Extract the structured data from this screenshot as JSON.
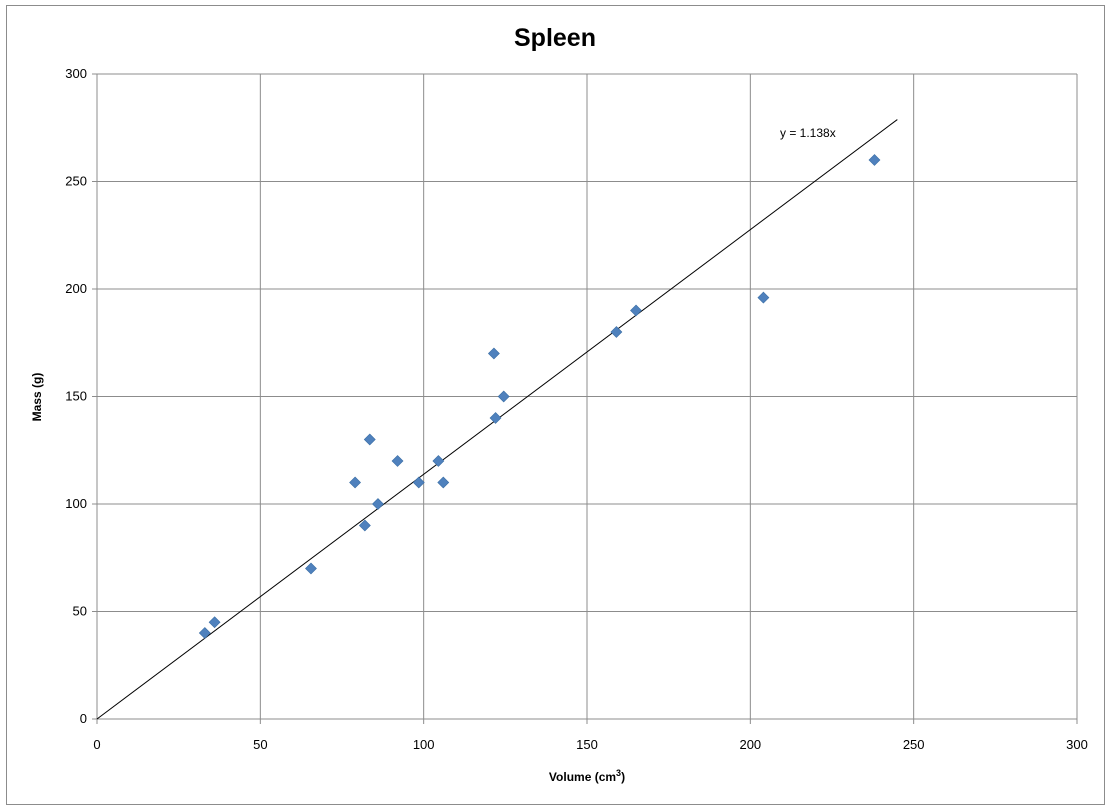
{
  "chart_data": {
    "type": "scatter",
    "title": "Spleen",
    "xlabel": "Volume (cm",
    "xlabel_sup": "3",
    "xlabel_end": ")",
    "ylabel": "Mass (g)",
    "xlim": [
      0,
      300
    ],
    "ylim": [
      0,
      300
    ],
    "x_ticks": [
      0,
      50,
      100,
      150,
      200,
      250,
      300
    ],
    "y_ticks": [
      0,
      50,
      100,
      150,
      200,
      250,
      300
    ],
    "grid": true,
    "legend": "none",
    "series": [
      {
        "color": "#4f81bd",
        "marker": "diamond",
        "points": [
          {
            "x": 33,
            "y": 40
          },
          {
            "x": 36,
            "y": 45
          },
          {
            "x": 65.5,
            "y": 70
          },
          {
            "x": 79,
            "y": 110
          },
          {
            "x": 82,
            "y": 90
          },
          {
            "x": 83.5,
            "y": 130
          },
          {
            "x": 86,
            "y": 100
          },
          {
            "x": 92,
            "y": 120
          },
          {
            "x": 98.5,
            "y": 110
          },
          {
            "x": 104.5,
            "y": 120
          },
          {
            "x": 106,
            "y": 110
          },
          {
            "x": 121.5,
            "y": 170
          },
          {
            "x": 122,
            "y": 140
          },
          {
            "x": 124.5,
            "y": 150
          },
          {
            "x": 159,
            "y": 180
          },
          {
            "x": 165,
            "y": 190
          },
          {
            "x": 204,
            "y": 196
          },
          {
            "x": 238,
            "y": 260
          }
        ]
      }
    ],
    "trendline": {
      "slope": 1.138,
      "x_range": [
        0,
        245
      ],
      "label": "y = 1.138x",
      "color": "#000000"
    }
  }
}
